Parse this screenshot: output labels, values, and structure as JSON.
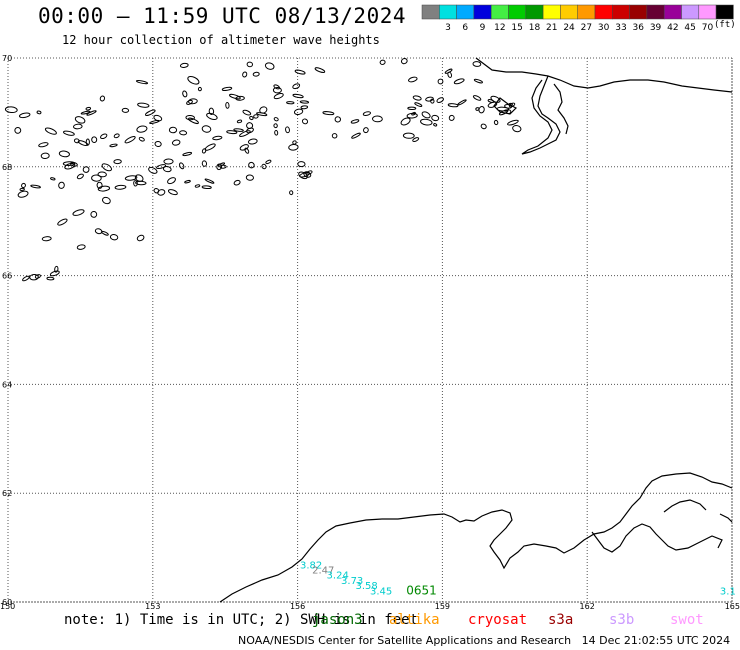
{
  "header": {
    "title": "00:00 – 11:59 UTC 08/13/2024",
    "subtitle": "12 hour collection of altimeter wave heights"
  },
  "legend": {
    "unit": "(ft)",
    "entries": [
      {
        "label": "",
        "color": "#808080"
      },
      {
        "label": "3",
        "color": "#00e0e0"
      },
      {
        "label": "6",
        "color": "#00aaff"
      },
      {
        "label": "9",
        "color": "#0000dd"
      },
      {
        "label": "12",
        "color": "#44ee44"
      },
      {
        "label": "15",
        "color": "#00cc00"
      },
      {
        "label": "18",
        "color": "#009900"
      },
      {
        "label": "21",
        "color": "#ffff00"
      },
      {
        "label": "24",
        "color": "#ffcc00"
      },
      {
        "label": "27",
        "color": "#ff9900"
      },
      {
        "label": "30",
        "color": "#ff0000"
      },
      {
        "label": "33",
        "color": "#cc0000"
      },
      {
        "label": "36",
        "color": "#990000"
      },
      {
        "label": "39",
        "color": "#660033"
      },
      {
        "label": "42",
        "color": "#990099"
      },
      {
        "label": "45",
        "color": "#cc99ff"
      },
      {
        "label": "70",
        "color": "#ff99ff"
      },
      {
        "label": "",
        "color": "#000000"
      }
    ]
  },
  "map": {
    "lat_range": [
      60,
      70
    ],
    "lon_range": [
      150,
      165
    ],
    "lat_ticks": [
      60,
      62,
      64,
      66,
      68,
      70
    ],
    "lon_ticks": [
      150,
      153,
      156,
      159,
      162,
      165
    ],
    "lat_labels": [
      {
        "lat": 70,
        "text": "70"
      },
      {
        "lat": 68,
        "text": "68"
      },
      {
        "lat": 66,
        "text": "66"
      },
      {
        "lat": 64,
        "text": "64"
      },
      {
        "lat": 62,
        "text": "62"
      },
      {
        "lat": 60,
        "text": "60"
      }
    ],
    "lon_labels": [
      {
        "lon": 150,
        "text": "150"
      },
      {
        "lon": 153,
        "text": "153"
      },
      {
        "lon": 156,
        "text": "156"
      },
      {
        "lon": 159,
        "text": "159"
      },
      {
        "lon": 162,
        "text": "162"
      },
      {
        "lon": 165,
        "text": "165"
      }
    ],
    "coastline_color": "#000000",
    "grid_color": "#555555"
  },
  "wave_labels": [
    {
      "text": "3.82",
      "lon": 156.05,
      "lat": 60.62,
      "color": "#00cccc"
    },
    {
      "text": "2.47",
      "lon": 156.3,
      "lat": 60.52,
      "color": "#808080"
    },
    {
      "text": "3.24",
      "lon": 156.6,
      "lat": 60.43,
      "color": "#00cccc"
    },
    {
      "text": "3.73",
      "lon": 156.9,
      "lat": 60.33,
      "color": "#00cccc"
    },
    {
      "text": "3.58",
      "lon": 157.2,
      "lat": 60.24,
      "color": "#00cccc"
    },
    {
      "text": "3.45",
      "lon": 157.5,
      "lat": 60.14,
      "color": "#00cccc"
    },
    {
      "text": "0651",
      "lon": 158.25,
      "lat": 60.14,
      "color": "#008800"
    },
    {
      "text": "3.1",
      "lon": 164.75,
      "lat": 60.14,
      "color": "#00cccc"
    }
  ],
  "footer": {
    "note": "note: 1) Time is in UTC; 2) SWH is in feet",
    "satellites": [
      {
        "name": "jason3",
        "color": "#006600"
      },
      {
        "name": "altika",
        "color": "#ff9900"
      },
      {
        "name": "cryosat",
        "color": "#ff0000"
      },
      {
        "name": "s3a",
        "color": "#990000"
      },
      {
        "name": "s3b",
        "color": "#cc99ff"
      },
      {
        "name": "swot",
        "color": "#ff99ff"
      }
    ],
    "credit": "NOAA/NESDIS Center for Satellite Applications and Research   14 Dec 21:02:55 UTC 2024"
  }
}
